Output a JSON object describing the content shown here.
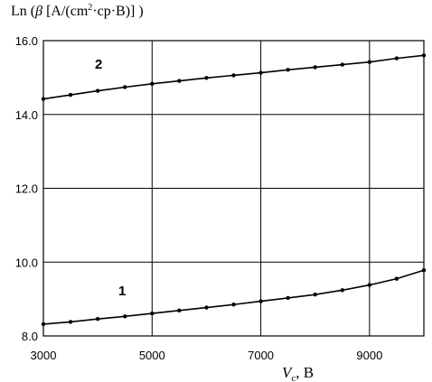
{
  "chart_data": {
    "type": "scatter",
    "ylabel": {
      "prefix": "Ln (",
      "beta": "β",
      "unit_open": " [A/(cm",
      "sup": "2",
      "unit_close": "·ср·B)] )"
    },
    "xlabel": {
      "var": "V",
      "sub": "c",
      "unit": ",  B"
    },
    "xlim": [
      3000,
      10000
    ],
    "ylim": [
      8.0,
      16.0
    ],
    "x_ticks": [
      3000,
      5000,
      7000,
      9000
    ],
    "x_tick_labels": [
      "3000",
      "5000",
      "7000",
      "9000"
    ],
    "y_ticks": [
      8.0,
      10.0,
      12.0,
      14.0,
      16.0
    ],
    "y_tick_labels": [
      "8.0",
      "10.0",
      "12.0",
      "14.0",
      "16.0"
    ],
    "grid": true,
    "series": [
      {
        "name": "1",
        "x": [
          3000,
          3500,
          4000,
          4500,
          5000,
          5500,
          6000,
          6500,
          7000,
          7500,
          8000,
          8500,
          9000,
          9500,
          10000
        ],
        "y": [
          8.32,
          8.38,
          8.46,
          8.53,
          8.61,
          8.69,
          8.77,
          8.85,
          8.94,
          9.03,
          9.12,
          9.24,
          9.38,
          9.55,
          9.78
        ]
      },
      {
        "name": "2",
        "x": [
          3000,
          3500,
          4000,
          4500,
          5000,
          5500,
          6000,
          6500,
          7000,
          7500,
          8000,
          8500,
          9000,
          9500,
          10000
        ],
        "y": [
          14.42,
          14.53,
          14.64,
          14.74,
          14.83,
          14.91,
          14.99,
          15.06,
          15.13,
          15.21,
          15.28,
          15.35,
          15.42,
          15.52,
          15.6
        ]
      }
    ],
    "annotations": [
      "1",
      "2"
    ]
  }
}
